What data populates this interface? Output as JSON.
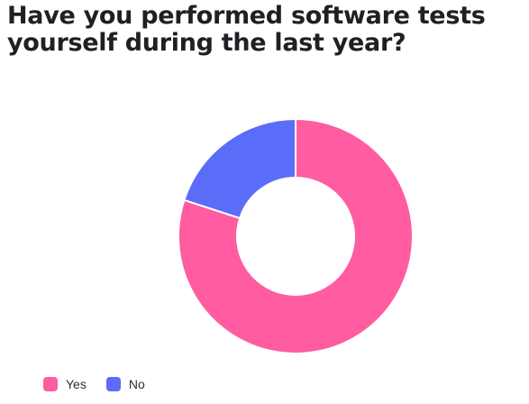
{
  "chart_data": {
    "type": "pie",
    "title": "Have you performed software tests yourself during the last year?",
    "donut": true,
    "slices": [
      {
        "label": "Yes",
        "value": 80,
        "color": "#ff5ca1"
      },
      {
        "label": "No",
        "value": 20,
        "color": "#5b6df8"
      }
    ],
    "legend": {
      "placement": "bottom-left"
    }
  }
}
